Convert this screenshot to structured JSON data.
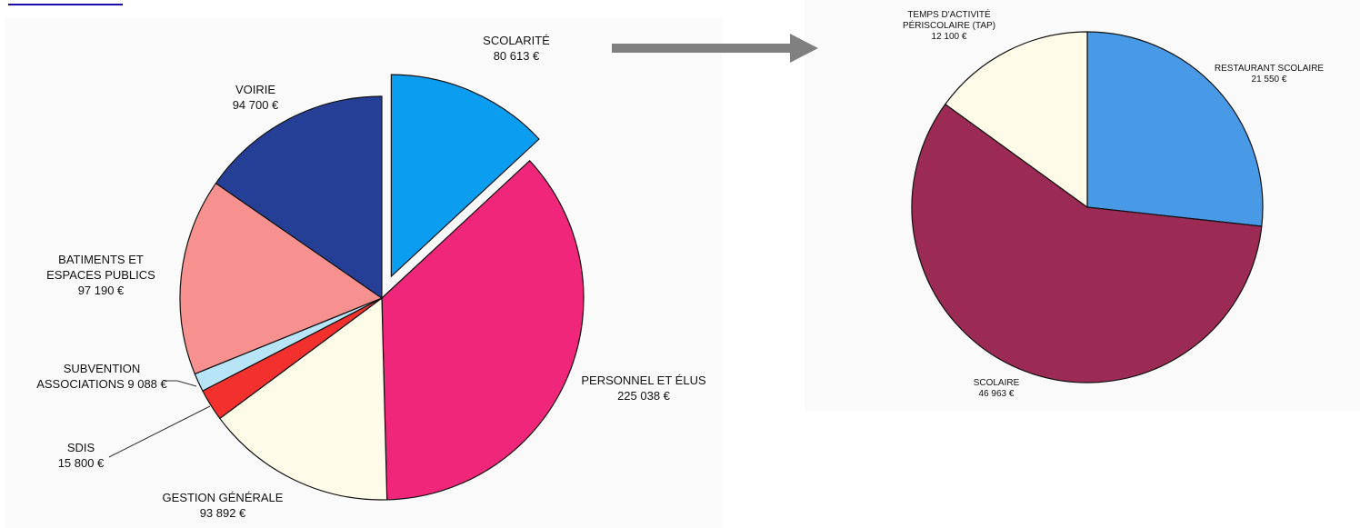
{
  "link": {
    "text": ""
  },
  "arrow": {
    "color": "#808080"
  },
  "chart_data": [
    {
      "type": "pie",
      "title": "",
      "exploded": "SCOLARITÉ",
      "slices": [
        {
          "label": [
            "SCOLARITÉ",
            "80 613 €"
          ],
          "value": 80613,
          "color": "#0a9df0"
        },
        {
          "label": [
            "PERSONNEL ET ÉLUS",
            "225 038 €"
          ],
          "value": 225038,
          "color": "#f0267b"
        },
        {
          "label": [
            "GESTION GÉNÉRALE",
            "93 892 €"
          ],
          "value": 93892,
          "color": "#fefbe8"
        },
        {
          "label": [
            "SDIS",
            "15 800 €"
          ],
          "value": 15800,
          "color": "#f2312e"
        },
        {
          "label": [
            "SUBVENTION",
            "ASSOCIATIONS 9 088 €"
          ],
          "value": 9088,
          "color": "#b8e4f8"
        },
        {
          "label": [
            "BATIMENTS ET",
            "ESPACES PUBLICS",
            "97 190 €"
          ],
          "value": 97190,
          "color": "#f7918f"
        },
        {
          "label": [
            "VOIRIE",
            "94 700 €"
          ],
          "value": 94700,
          "color": "#253f97"
        }
      ]
    },
    {
      "type": "pie",
      "title": "",
      "slices": [
        {
          "label": [
            "RESTAURANT SCOLAIRE",
            "21 550 €"
          ],
          "value": 21550,
          "color": "#4899e6"
        },
        {
          "label": [
            "SCOLAIRE",
            "46 963 €"
          ],
          "value": 46963,
          "color": "#9b2b55"
        },
        {
          "label": [
            "TEMPS D'ACTIVITÉ",
            "PÉRISCOLAIRE (TAP)",
            "12 100 €"
          ],
          "value": 12100,
          "color": "#fefbe8"
        }
      ]
    }
  ]
}
